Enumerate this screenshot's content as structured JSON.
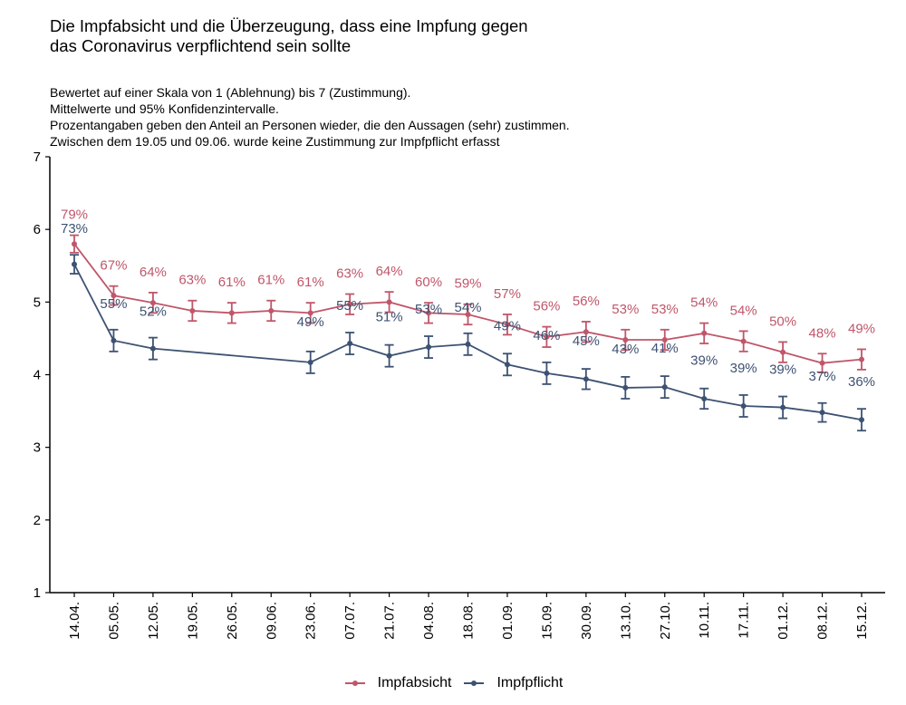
{
  "chart_data": {
    "type": "line",
    "title": "Die Impfabsicht und die Überzeugung, dass eine Impfung gegen das Coronavirus verpflichtend sein sollte",
    "title_lines": [
      "Die Impfabsicht und die Überzeugung, dass eine Impfung gegen",
      "das Coronavirus verpflichtend sein sollte"
    ],
    "subtitle_lines": [
      "Bewertet auf einer Skala von 1 (Ablehnung) bis 7 (Zustimmung).",
      "Mittelwerte und 95% Konfidenzintervalle.",
      "Prozentangaben geben den Anteil an Personen wieder, die den Aussagen (sehr) zustimmen.",
      "Zwischen dem 19.05 und 09.06. wurde keine Zustimmung zur Impfpflicht erfasst"
    ],
    "xlabel": "",
    "ylabel": "",
    "ylim": [
      1,
      7
    ],
    "yticks": [
      1,
      2,
      3,
      4,
      5,
      6,
      7
    ],
    "grid": false,
    "legend_position": "bottom",
    "categories": [
      "14.04.",
      "05.05.",
      "12.05.",
      "19.05.",
      "26.05.",
      "09.06.",
      "23.06.",
      "07.07.",
      "21.07.",
      "04.08.",
      "18.08.",
      "01.09.",
      "15.09.",
      "30.09.",
      "13.10.",
      "27.10.",
      "10.11.",
      "17.11.",
      "01.12.",
      "08.12.",
      "15.12."
    ],
    "series": [
      {
        "name": "Impfabsicht",
        "color": "#C0566A",
        "values": [
          5.8,
          5.09,
          4.99,
          4.88,
          4.85,
          4.88,
          4.85,
          4.97,
          5.0,
          4.85,
          4.83,
          4.69,
          4.52,
          4.59,
          4.48,
          4.48,
          4.57,
          4.46,
          4.31,
          4.16,
          4.21
        ],
        "ci_halfwidth": [
          0.12,
          0.13,
          0.14,
          0.14,
          0.14,
          0.14,
          0.14,
          0.14,
          0.14,
          0.14,
          0.14,
          0.14,
          0.14,
          0.14,
          0.14,
          0.14,
          0.14,
          0.14,
          0.14,
          0.13,
          0.14
        ],
        "labels": [
          "79%",
          "67%",
          "64%",
          "63%",
          "61%",
          "61%",
          "61%",
          "63%",
          "64%",
          "60%",
          "59%",
          "57%",
          "56%",
          "56%",
          "53%",
          "53%",
          "54%",
          "54%",
          "50%",
          "48%",
          "49%"
        ]
      },
      {
        "name": "Impfpflicht",
        "color": "#3D5272",
        "values": [
          5.52,
          4.47,
          4.36,
          null,
          null,
          null,
          4.17,
          4.43,
          4.26,
          4.38,
          4.42,
          4.14,
          4.02,
          3.94,
          3.82,
          3.83,
          3.67,
          3.57,
          3.55,
          3.48,
          3.38
        ],
        "ci_halfwidth": [
          0.13,
          0.15,
          0.15,
          null,
          null,
          null,
          0.15,
          0.15,
          0.15,
          0.15,
          0.15,
          0.15,
          0.15,
          0.14,
          0.15,
          0.15,
          0.14,
          0.15,
          0.15,
          0.13,
          0.15
        ],
        "labels": [
          "73%",
          "55%",
          "52%",
          null,
          null,
          null,
          "49%",
          "55%",
          "51%",
          "53%",
          "54%",
          "49%",
          "46%",
          "45%",
          "43%",
          "41%",
          "39%",
          "39%",
          "39%",
          "37%",
          "36%"
        ]
      }
    ]
  }
}
